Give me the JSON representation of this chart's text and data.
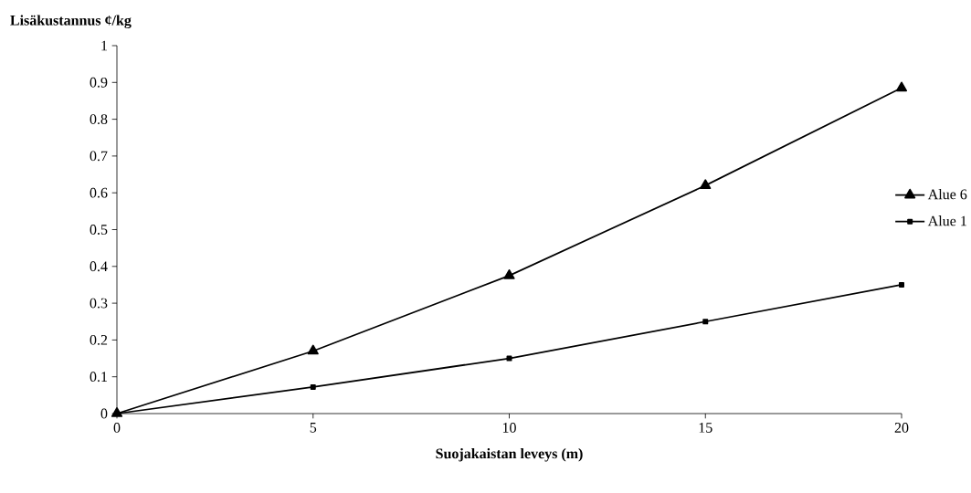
{
  "chart_data": {
    "type": "line",
    "ylabel": "Lisäkustannus ¢/kg",
    "xlabel": "Suojakaistan leveys (m)",
    "x": [
      0,
      5,
      10,
      15,
      20
    ],
    "series": [
      {
        "name": "Alue 6",
        "color": "#000000",
        "marker": "triangle",
        "values": [
          0,
          0.17,
          0.375,
          0.62,
          0.885
        ]
      },
      {
        "name": "Alue 1",
        "color": "#000000",
        "marker": "square",
        "values": [
          0,
          0.072,
          0.15,
          0.25,
          0.35
        ]
      }
    ],
    "xlim": [
      0,
      20
    ],
    "xticks": [
      0,
      5,
      10,
      15,
      20
    ],
    "ylim": [
      0,
      1
    ],
    "yticks": [
      0,
      0.1,
      0.2,
      0.3,
      0.4,
      0.5,
      0.6,
      0.7,
      0.8,
      0.9,
      1
    ],
    "grid": false,
    "legend": "right",
    "line_style": "solid"
  }
}
